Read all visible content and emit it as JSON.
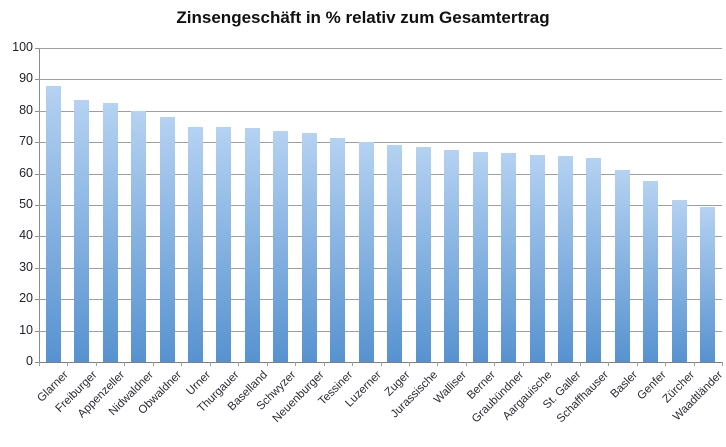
{
  "title": "Zinsengeschäft in % relativ zum Gesamtertrag",
  "chart_data": {
    "type": "bar",
    "title": "Zinsengeschäft in % relativ zum Gesamtertrag",
    "categories": [
      "Glarner",
      "Freiburger",
      "Appenzeller",
      "Nidwaldner",
      "Obwaldner",
      "Urner",
      "Thurgauer",
      "Baselland",
      "Schwyzer",
      "Neuenburger",
      "Tessiner",
      "Luzerner",
      "Zuger",
      "Jurassische",
      "Walliser",
      "Berner",
      "Graubündner",
      "Aargauische",
      "St. Galler",
      "Schaffhauser",
      "Basler",
      "Genfer",
      "Zürcher",
      "Waadtländer"
    ],
    "values": [
      88,
      83.5,
      82.5,
      80,
      78,
      75,
      75,
      74.5,
      73.5,
      73,
      71.5,
      70,
      69,
      68.5,
      67.5,
      67,
      66.5,
      66,
      65.5,
      65,
      61,
      57.5,
      51.5,
      49.5
    ],
    "xlabel": "",
    "ylabel": "",
    "ylim": [
      0,
      100
    ],
    "ytick_step": 10,
    "grid": "horizontal",
    "legend": "none",
    "colors": {
      "bar_gradient_top": "#b5d2f2",
      "bar_gradient_bottom": "#5792d0",
      "gridline": "#9e9e9e",
      "axis": "#7f7f7f",
      "tick_label": "#21212b",
      "title": "#111111"
    }
  }
}
